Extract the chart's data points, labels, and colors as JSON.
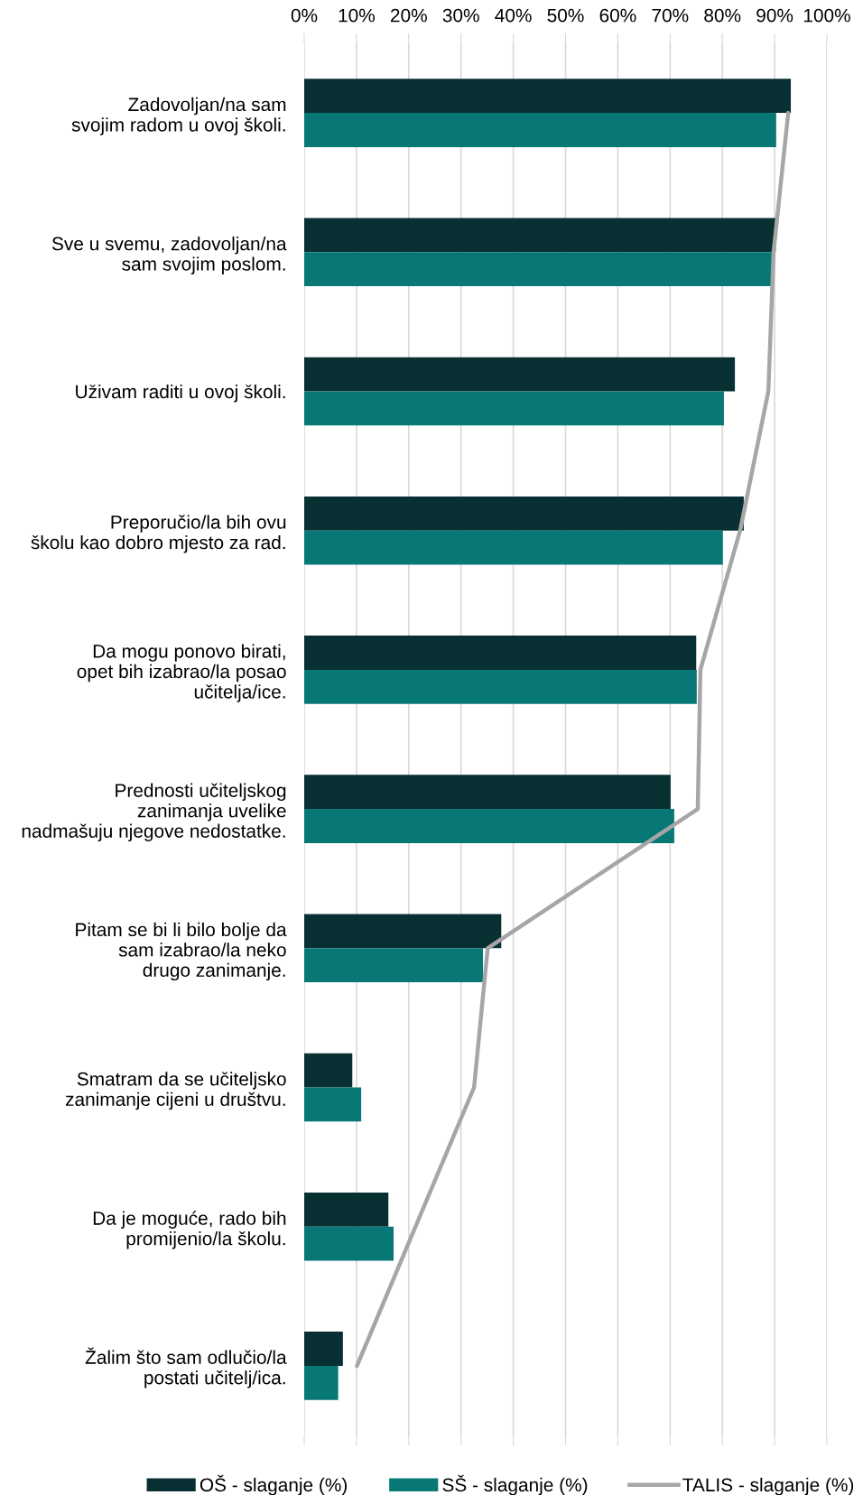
{
  "chart_data": {
    "type": "bar",
    "orientation": "horizontal",
    "categories": [
      "Zadovoljan/na sam\nsvojim radom u ovoj školi.",
      "Sve u svemu, zadovoljan/na\nsam svojim poslom.",
      "Uživam raditi u ovoj školi.",
      "Preporučio/la bih ovu\nškolu kao dobro mjesto za rad.",
      "Da mogu ponovo birati,\nopet bih izabrao/la posao\nučitelja/ice.",
      "Prednosti učiteljskog\nzanimanja uvelike\nnadmašuju njegove nedostatke.",
      "Pitam se bi li bilo bolje da\nsam izabrao/la neko\ndrugo zanimanje.",
      "Smatram da se učiteljsko\nzanimanje cijeni u društvu.",
      "Da je moguće, rado bih\npromijenio/la školu.",
      "Žalim što sam odlučio/la\npostati učitelj/ica."
    ],
    "series": [
      {
        "name": "OŠ - slaganje (%)",
        "color": "#083032",
        "values": [
          93.1,
          90.2,
          82.4,
          84.1,
          75.0,
          70.1,
          37.7,
          9.2,
          16.1,
          7.4
        ]
      },
      {
        "name": "SŠ - slaganje (%)",
        "color": "#087877",
        "values": [
          90.3,
          89.5,
          80.3,
          80.1,
          75.1,
          70.8,
          34.2,
          10.9,
          17.1,
          6.5
        ]
      },
      {
        "name": "TALIS - slaganje (%)",
        "type": "line",
        "color": "#a6a6a6",
        "values": [
          92.6,
          89.8,
          88.8,
          83.4,
          75.8,
          75.3,
          35.1,
          32.5,
          21.3,
          10.1
        ]
      }
    ],
    "xlim": [
      0,
      100
    ],
    "xticks": [
      {
        "value": 0,
        "label": "0%"
      },
      {
        "value": 10,
        "label": "10%"
      },
      {
        "value": 20,
        "label": "20%"
      },
      {
        "value": 30,
        "label": "30%"
      },
      {
        "value": 40,
        "label": "40%"
      },
      {
        "value": 50,
        "label": "50%"
      },
      {
        "value": 60,
        "label": "60%"
      },
      {
        "value": 70,
        "label": "70%"
      },
      {
        "value": 80,
        "label": "80%"
      },
      {
        "value": 90,
        "label": "90%"
      },
      {
        "value": 100,
        "label": "100%"
      }
    ],
    "grid": "x",
    "legend": "bottom",
    "marker": "none",
    "line_style": "solid"
  }
}
